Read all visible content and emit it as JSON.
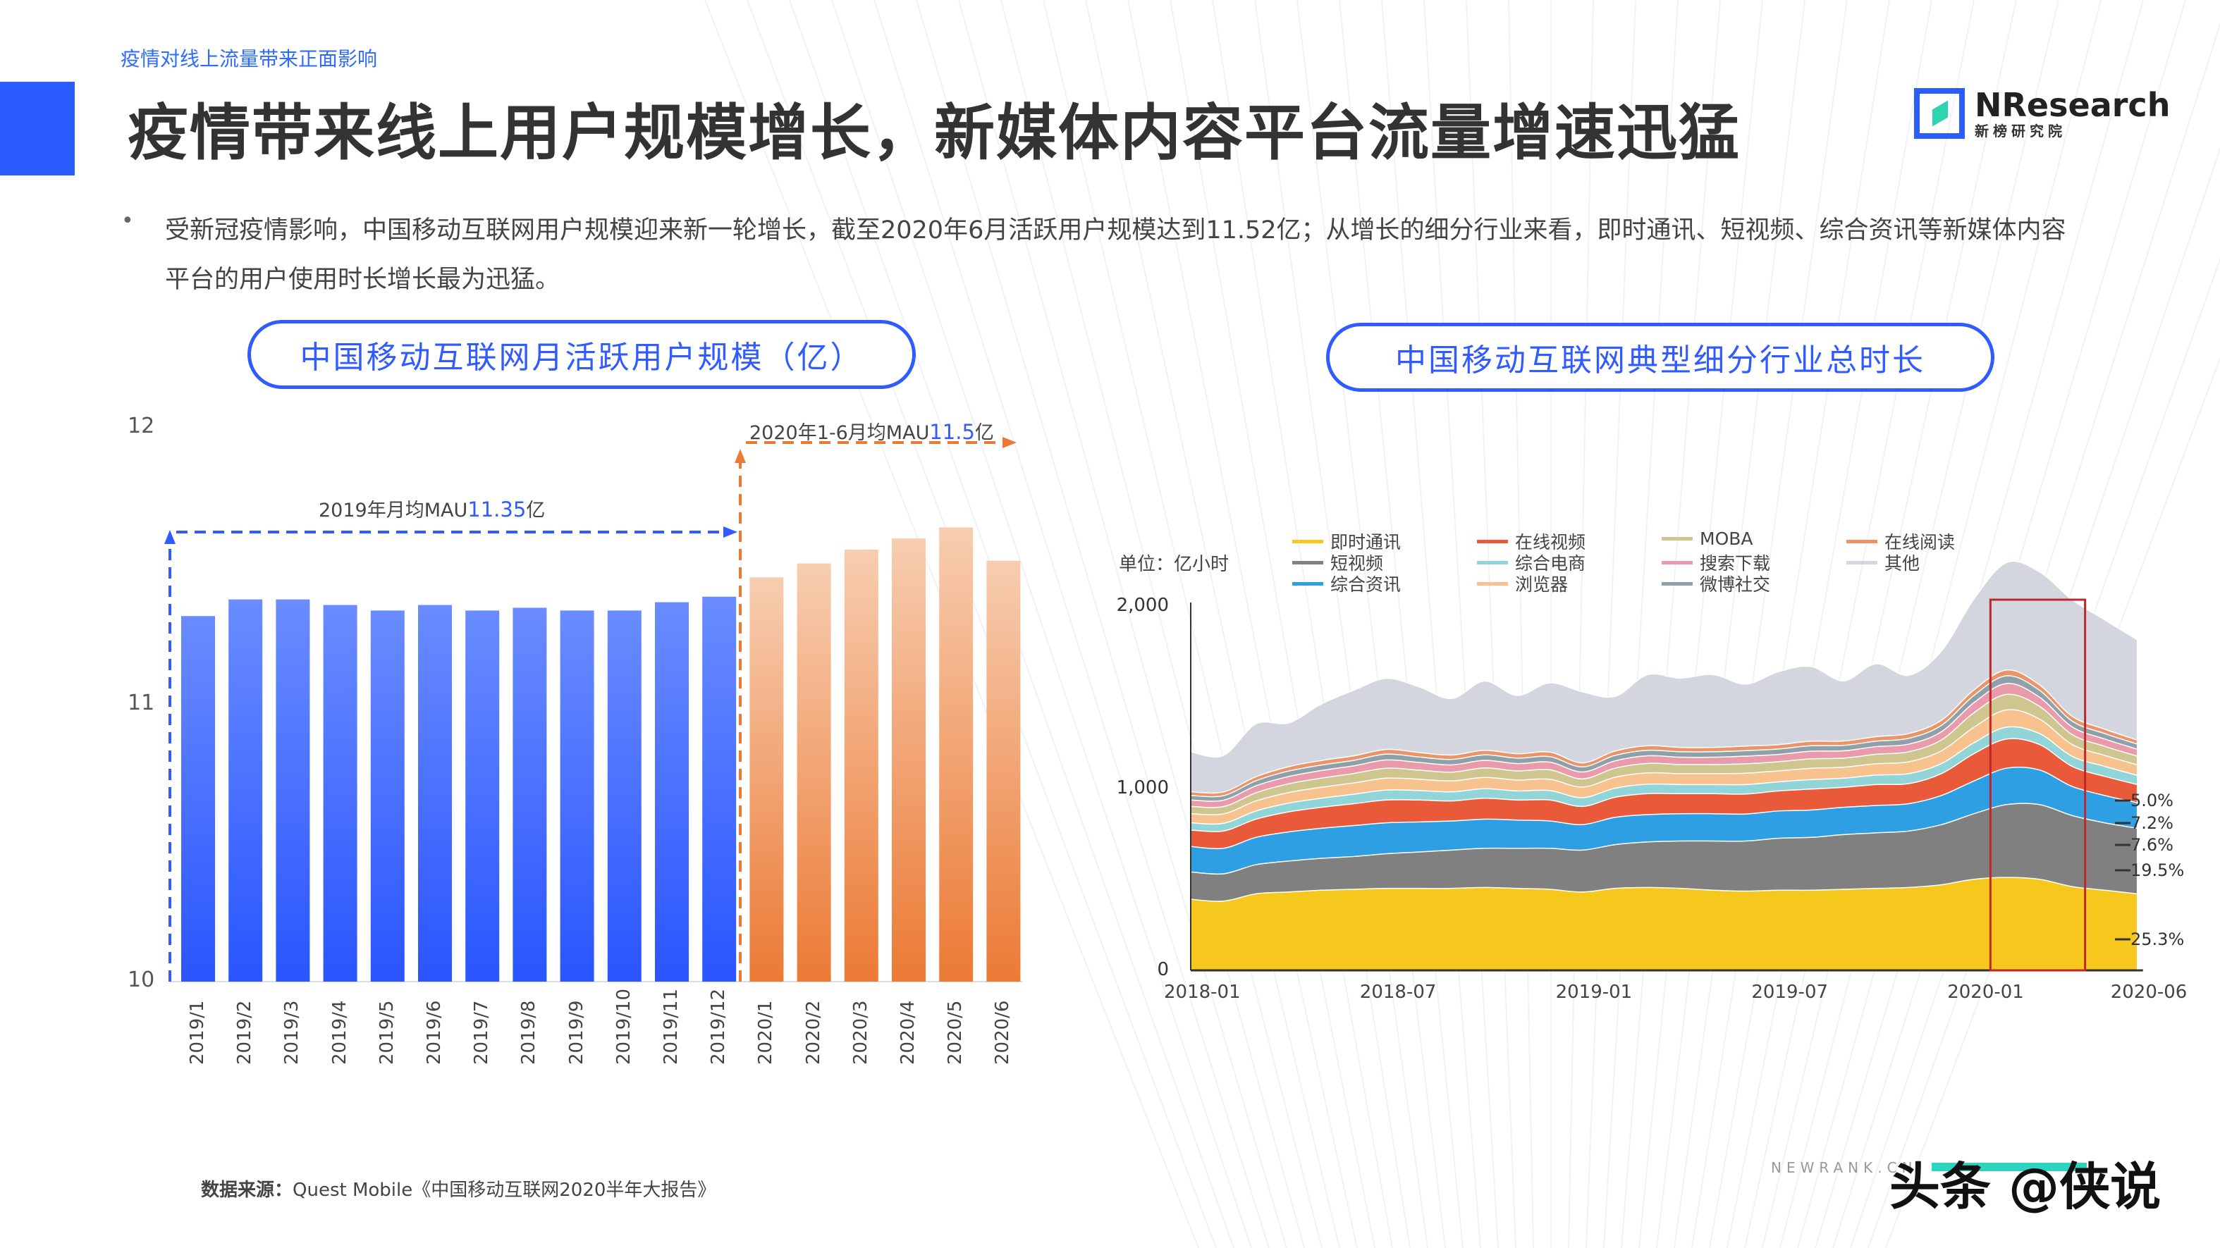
{
  "header": {
    "section_tag": "疫情对线上流量带来正面影响",
    "title": "疫情带来线上用户规模增长，新媒体内容平台流量增速迅猛",
    "logo": {
      "name": "NResearch",
      "sub": "新榜研究院"
    }
  },
  "bullet": {
    "text": "受新冠疫情影响，中国移动互联网用户规模迎来新一轮增长，截至2020年6月活跃用户规模达到11.52亿；从增长的细分行业来看，即时通讯、短视频、综合资讯等新媒体内容平台的用户使用时长增长最为迅猛。"
  },
  "colors": {
    "accent": "#2b5cff",
    "bar_2019": "#3a63ff",
    "bar_2020": "#ec7a35",
    "highlight_box": "#c0272d"
  },
  "chart_data": [
    {
      "type": "bar",
      "title": "中国移动互联网月活跃用户规模（亿）",
      "categories": [
        "2019/1",
        "2019/2",
        "2019/3",
        "2019/4",
        "2019/5",
        "2019/6",
        "2019/7",
        "2019/8",
        "2019/9",
        "2019/10",
        "2019/11",
        "2019/12",
        "2020/1",
        "2020/2",
        "2020/3",
        "2020/4",
        "2020/5",
        "2020/6"
      ],
      "values": [
        11.32,
        11.38,
        11.38,
        11.36,
        11.34,
        11.36,
        11.34,
        11.35,
        11.34,
        11.34,
        11.37,
        11.39,
        11.46,
        11.51,
        11.56,
        11.6,
        11.64,
        11.52
      ],
      "yticks": [
        "10",
        "11",
        "12"
      ],
      "ylim": [
        10,
        12
      ],
      "grid": false,
      "annotations": [
        {
          "prefix": "2019年月均MAU",
          "value": "11.35",
          "suffix": "亿"
        },
        {
          "prefix": "2020年1-6月均MAU",
          "value": "11.5",
          "suffix": "亿"
        }
      ]
    },
    {
      "type": "area",
      "stacked": true,
      "title": "中国移动互联网典型细分行业总时长",
      "unit_label": "单位：亿小时",
      "ylim": [
        0,
        2000
      ],
      "yticks": [
        "0",
        "1,000",
        "2,000"
      ],
      "xticks": [
        "2018-01",
        "2018-07",
        "2019-01",
        "2019-07",
        "2020-01",
        "2020-06"
      ],
      "x_start": "2018-01",
      "x_end": "2020-06",
      "highlight_range": [
        "2020-02",
        "2020-04"
      ],
      "legend": "top",
      "share_labels": [
        "5.0%",
        "7.2%",
        "7.6%",
        "19.5%",
        "25.3%"
      ],
      "series": [
        {
          "name": "即时通讯",
          "color": "#f6c81e",
          "values": [
            390,
            380,
            420,
            430,
            440,
            445,
            450,
            450,
            450,
            455,
            450,
            445,
            430,
            450,
            455,
            450,
            440,
            435,
            440,
            440,
            445,
            450,
            455,
            470,
            500,
            510,
            500,
            460,
            440,
            420
          ]
        },
        {
          "name": "短视频",
          "color": "#808080",
          "values": [
            150,
            150,
            160,
            170,
            175,
            180,
            190,
            200,
            210,
            215,
            220,
            225,
            230,
            240,
            250,
            260,
            270,
            275,
            285,
            290,
            300,
            305,
            310,
            330,
            360,
            400,
            410,
            390,
            370,
            360
          ]
        },
        {
          "name": "综合资讯",
          "color": "#2e9fe2",
          "values": [
            140,
            140,
            150,
            160,
            165,
            170,
            170,
            165,
            160,
            160,
            155,
            150,
            140,
            150,
            150,
            150,
            150,
            148,
            150,
            150,
            150,
            150,
            150,
            160,
            180,
            200,
            190,
            160,
            150,
            140
          ]
        },
        {
          "name": "在线视频",
          "color": "#e85a3a",
          "values": [
            90,
            95,
            100,
            110,
            115,
            120,
            125,
            120,
            110,
            115,
            110,
            115,
            100,
            110,
            115,
            110,
            110,
            110,
            110,
            115,
            110,
            115,
            110,
            120,
            150,
            160,
            140,
            110,
            105,
            100
          ]
        },
        {
          "name": "综合电商",
          "color": "#92d5d8",
          "values": [
            40,
            42,
            45,
            48,
            50,
            52,
            55,
            52,
            50,
            52,
            50,
            52,
            48,
            50,
            52,
            50,
            50,
            52,
            50,
            52,
            50,
            52,
            55,
            55,
            60,
            65,
            60,
            55,
            55,
            50
          ]
        },
        {
          "name": "浏览器",
          "color": "#f8c28e",
          "values": [
            50,
            52,
            55,
            58,
            60,
            62,
            65,
            62,
            60,
            62,
            60,
            62,
            58,
            60,
            62,
            60,
            60,
            62,
            60,
            62,
            60,
            62,
            65,
            70,
            85,
            95,
            80,
            65,
            60,
            58
          ]
        },
        {
          "name": "MOBA",
          "color": "#cfc68f",
          "values": [
            40,
            40,
            45,
            48,
            50,
            52,
            55,
            50,
            48,
            52,
            50,
            52,
            45,
            50,
            52,
            50,
            50,
            52,
            50,
            52,
            50,
            52,
            55,
            60,
            80,
            85,
            70,
            55,
            50,
            48
          ]
        },
        {
          "name": "搜索下载",
          "color": "#e99bab",
          "values": [
            35,
            35,
            38,
            40,
            42,
            42,
            45,
            42,
            40,
            42,
            40,
            42,
            38,
            40,
            42,
            40,
            40,
            42,
            40,
            42,
            40,
            42,
            42,
            45,
            55,
            60,
            50,
            42,
            40,
            38
          ]
        },
        {
          "name": "微博社交",
          "color": "#8fa0a8",
          "values": [
            25,
            25,
            28,
            30,
            30,
            30,
            32,
            30,
            30,
            30,
            30,
            30,
            28,
            30,
            30,
            30,
            30,
            30,
            30,
            30,
            30,
            30,
            32,
            35,
            40,
            42,
            38,
            32,
            30,
            28
          ]
        },
        {
          "name": "在线阅读",
          "color": "#ea946a",
          "values": [
            20,
            20,
            22,
            24,
            25,
            25,
            26,
            25,
            24,
            25,
            24,
            25,
            22,
            24,
            25,
            24,
            24,
            25,
            24,
            25,
            24,
            25,
            26,
            28,
            30,
            32,
            30,
            26,
            24,
            22
          ]
        },
        {
          "name": "其他",
          "color": "#d4d6df",
          "values": [
            220,
            200,
            290,
            240,
            310,
            360,
            390,
            360,
            310,
            380,
            320,
            380,
            390,
            300,
            390,
            380,
            400,
            340,
            400,
            410,
            330,
            400,
            320,
            380,
            500,
            590,
            620,
            640,
            600,
            550
          ]
        }
      ],
      "legend_order": [
        "即时通讯",
        "短视频",
        "综合资讯",
        "在线视频",
        "综合电商",
        "浏览器",
        "MOBA",
        "搜索下载",
        "微博社交",
        "在线阅读",
        "其他"
      ]
    }
  ],
  "footer": {
    "source_label": "数据来源：",
    "source_text": "Quest Mobile《中国移动互联网2020半年大报告》",
    "watermark_site": "NEWRANK.CN",
    "watermark_author": "头条 @侠说"
  }
}
